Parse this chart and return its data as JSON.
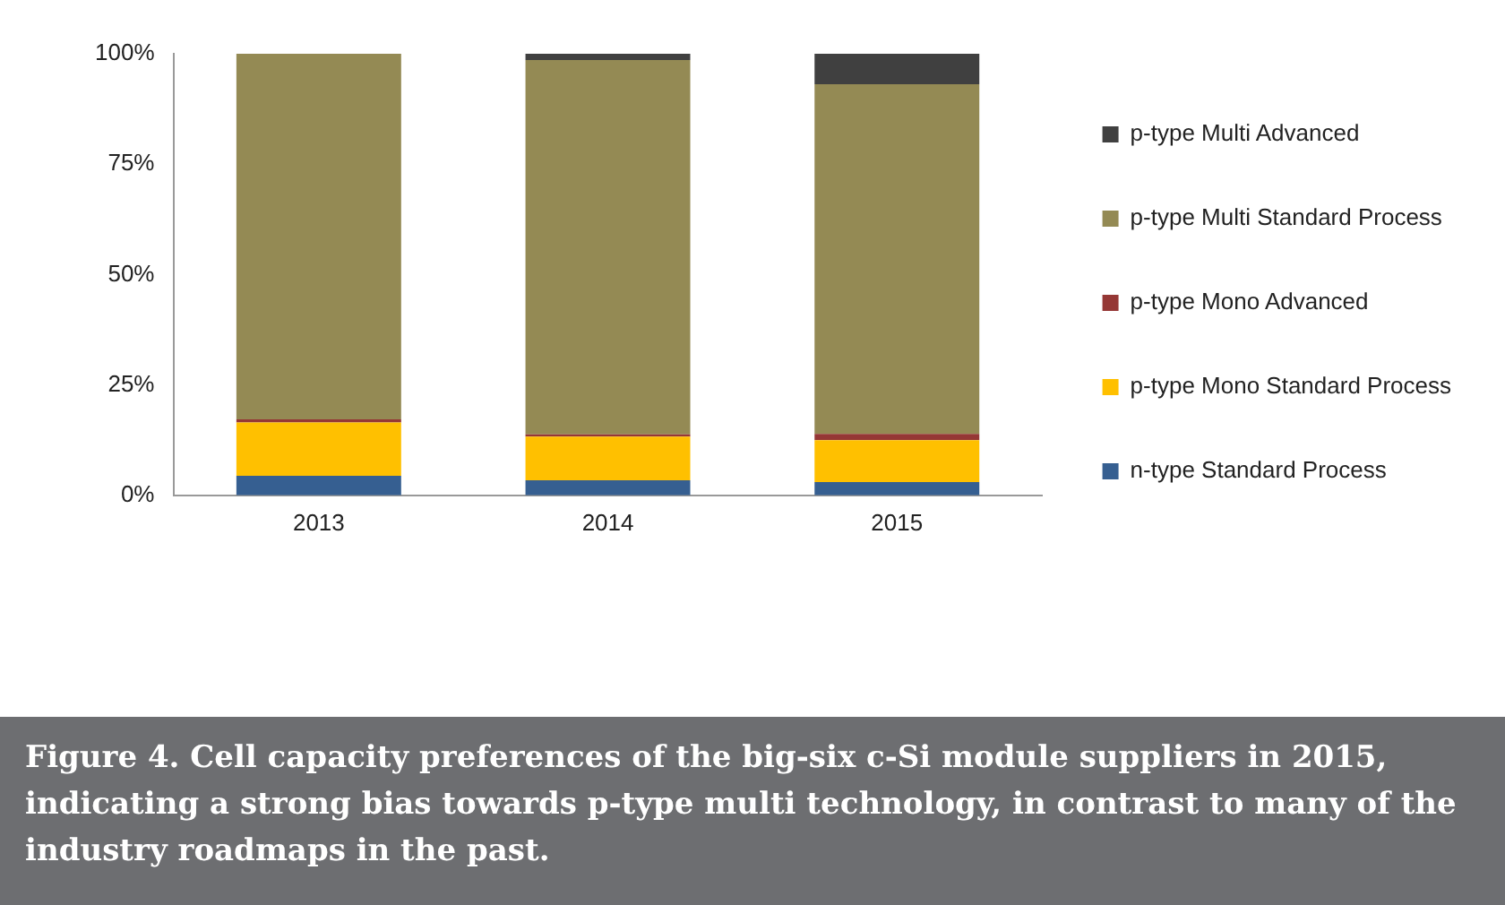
{
  "chart_data": {
    "type": "bar",
    "stacked": true,
    "categories": [
      "2013",
      "2014",
      "2015"
    ],
    "series": [
      {
        "name": "n-type Standard Process",
        "color": "#365f91",
        "values": [
          4.4,
          3.4,
          3.0
        ]
      },
      {
        "name": "p-type Mono Standard Process",
        "color": "#ffc000",
        "values": [
          12.1,
          9.9,
          9.5
        ]
      },
      {
        "name": "p-type Mono Advanced",
        "color": "#953735",
        "values": [
          0.7,
          0.5,
          1.4
        ]
      },
      {
        "name": "p-type Multi Standard Process",
        "color": "#948a54",
        "values": [
          82.8,
          84.8,
          79.2
        ]
      },
      {
        "name": "p-type Multi Advanced",
        "color": "#404040",
        "values": [
          0,
          1.4,
          6.9
        ]
      }
    ],
    "ylim": [
      0,
      100
    ],
    "yticks": [
      {
        "value": 0,
        "label": "0%"
      },
      {
        "value": 25,
        "label": "25%"
      },
      {
        "value": 50,
        "label": "50%"
      },
      {
        "value": 75,
        "label": "75%"
      },
      {
        "value": 100,
        "label": "100%"
      }
    ],
    "grid": false,
    "legend": "right",
    "annotations": [
      "Figure 4. Cell capacity preferences of the big-six c-Si module suppliers in 2015, indicating a strong bias towards p-type multi technology, in contrast to many of the industry roadmaps in the past."
    ]
  }
}
